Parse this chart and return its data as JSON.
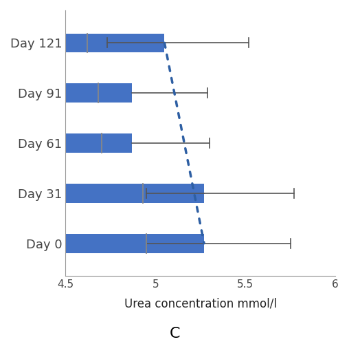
{
  "categories": [
    "Day 0",
    "Day 31",
    "Day 61",
    "Day 91",
    "Day 121"
  ],
  "bar_values": [
    5.27,
    5.27,
    4.87,
    4.87,
    5.05
  ],
  "error_right": [
    0.48,
    0.5,
    0.43,
    0.42,
    0.47
  ],
  "error_left": [
    0.32,
    0.32,
    0.0,
    0.0,
    0.32
  ],
  "median_lines": [
    4.95,
    4.93,
    4.7,
    4.68,
    4.62
  ],
  "bar_color": "#4472C4",
  "dotted_line_color": "#2E5FA3",
  "xlim": [
    4.5,
    6.0
  ],
  "xticks": [
    4.5,
    5.0,
    5.5,
    6.0
  ],
  "xlabel": "Urea concentration mmol/l",
  "figure_label": "C",
  "bar_height": 0.38,
  "bar_spacing": 1.0,
  "background_color": "#ffffff",
  "spine_color": "#999999",
  "error_color": "#555555",
  "median_color": "#888888"
}
